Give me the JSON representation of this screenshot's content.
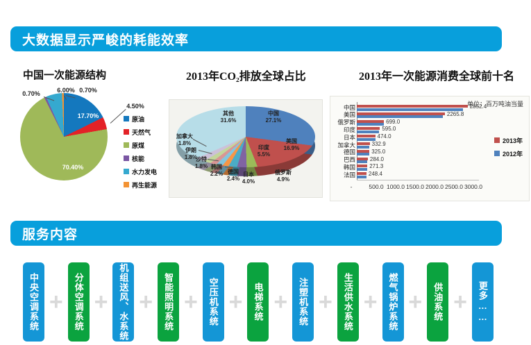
{
  "banners": {
    "main_title": "大数据显示严峻的耗能效率",
    "services_title": "服务内容",
    "color": "#089fdc"
  },
  "chart_data": [
    {
      "type": "pie",
      "title": "中国一次能源结构",
      "legend_position": "right",
      "slices": [
        {
          "label": "原油",
          "value": 17.7,
          "pct": "17.70%",
          "color": "#1478be"
        },
        {
          "label": "天然气",
          "value": 4.5,
          "pct": "4.50%",
          "color": "#e32227"
        },
        {
          "label": "原煤",
          "value": 70.4,
          "pct": "70.40%",
          "color": "#9fb959"
        },
        {
          "label": "核能",
          "value": 0.7,
          "pct": "0.70%",
          "color": "#7a56a3"
        },
        {
          "label": "水力发电",
          "value": 6.0,
          "pct": "6.00%",
          "color": "#35a9cf"
        },
        {
          "label": "再生能源",
          "value": 0.7,
          "pct": "0.70%",
          "color": "#f39334"
        }
      ]
    },
    {
      "type": "pie",
      "style": "3d",
      "title": "2013年CO₂排放全球占比",
      "slices": [
        {
          "label": "中国",
          "value": 27.1,
          "pct": "27.1%",
          "color": "#4f81bd"
        },
        {
          "label": "美国",
          "value": 16.9,
          "pct": "16.9%",
          "color": "#c0504d"
        },
        {
          "label": "印度",
          "value": 5.5,
          "pct": "5.5%",
          "color": "#9bbb59"
        },
        {
          "label": "俄罗斯",
          "value": 4.9,
          "pct": "4.9%",
          "color": "#8064a2"
        },
        {
          "label": "日本",
          "value": 4.0,
          "pct": "4.0%",
          "color": "#4bacc6"
        },
        {
          "label": "德国",
          "value": 2.4,
          "pct": "2.4%",
          "color": "#f79646"
        },
        {
          "label": "韩国",
          "value": 2.2,
          "pct": "2.2%",
          "color": "#85c5dd"
        },
        {
          "label": "沙特",
          "value": 1.8,
          "pct": "1.8%",
          "color": "#d99694"
        },
        {
          "label": "伊朗",
          "value": 1.8,
          "pct": "1.8%",
          "color": "#c3d69b"
        },
        {
          "label": "加拿大",
          "value": 1.8,
          "pct": "1.8%",
          "color": "#ccc1d9"
        },
        {
          "label": "其他",
          "value": 31.6,
          "pct": "31.6%",
          "color": "#b7dde8"
        }
      ]
    },
    {
      "type": "bar",
      "orientation": "horizontal",
      "title": "2013年一次能源消费全球前十名",
      "unit": "单位：百万吨油当量",
      "categories": [
        "中国",
        "美国",
        "俄罗斯",
        "印度",
        "日本",
        "加拿大",
        "德国",
        "巴西",
        "韩国",
        "法国"
      ],
      "series": [
        {
          "name": "2013年",
          "color": "#c0504d",
          "labeled": true,
          "values": [
            2852.4,
            2265.8,
            699.0,
            595.0,
            474.0,
            332.9,
            325.0,
            284.0,
            271.3,
            248.4
          ]
        },
        {
          "name": "2012年",
          "color": "#4f81bd",
          "estimated": true,
          "values": [
            2740,
            2210,
            700,
            565,
            480,
            330,
            318,
            276,
            268,
            245
          ]
        }
      ],
      "xlim": [
        0,
        3000
      ],
      "xticks": [
        500,
        1000,
        1500,
        2000,
        2500,
        3000
      ],
      "xtick_labels": [
        "500.0",
        "1000.0",
        "1500.0",
        "2000.0",
        "2500.0",
        "3000.0"
      ],
      "origin_label": "-",
      "legend_position": "right"
    }
  ],
  "services": {
    "separator": "+",
    "colors": {
      "blue": "#1496d6",
      "green": "#0ba33f"
    },
    "items": [
      {
        "label": "中央空调系统",
        "color": "blue"
      },
      {
        "label": "分体空调系统",
        "color": "green"
      },
      {
        "label": "机组送风、水系统",
        "color": "blue"
      },
      {
        "label": "智能照明系统",
        "color": "green"
      },
      {
        "label": "空压机系统",
        "color": "blue"
      },
      {
        "label": "电梯系统",
        "color": "green"
      },
      {
        "label": "注塑机系统",
        "color": "blue"
      },
      {
        "label": "生活供水系统",
        "color": "green"
      },
      {
        "label": "燃气锅炉系统",
        "color": "blue"
      },
      {
        "label": "供油系统",
        "color": "green"
      },
      {
        "label": "更多……",
        "color": "blue"
      }
    ]
  }
}
